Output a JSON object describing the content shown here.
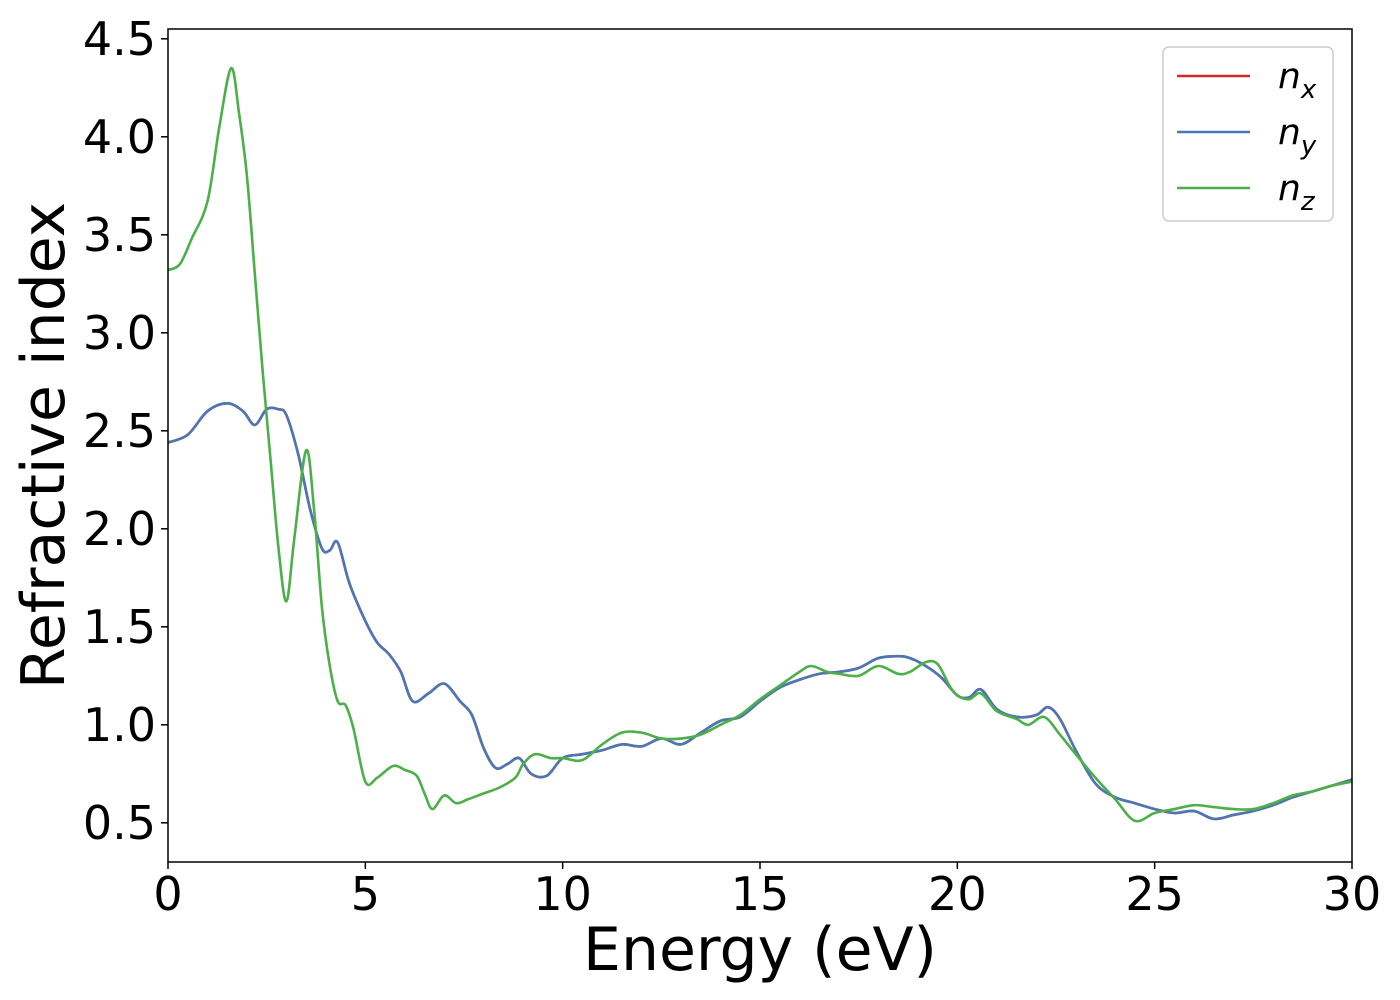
{
  "chart_data": {
    "type": "line",
    "xlabel": "Energy (eV)",
    "ylabel": "Refractive index",
    "xlim": [
      0,
      30
    ],
    "ylim": [
      0.3,
      4.55
    ],
    "x_ticks": [
      "0",
      "5",
      "10",
      "15",
      "20",
      "25",
      "30"
    ],
    "y_ticks": [
      "0.5",
      "1.0",
      "1.5",
      "2.0",
      "2.5",
      "3.0",
      "3.5",
      "4.0",
      "4.5"
    ],
    "grid": false,
    "legend_position": "top-right",
    "series": [
      {
        "name": "n",
        "subscript": "x",
        "color": "#d62728",
        "points": [
          [
            0,
            2.44
          ],
          [
            0.5,
            2.48
          ],
          [
            1.0,
            2.6
          ],
          [
            1.5,
            2.64
          ],
          [
            1.9,
            2.6
          ],
          [
            2.2,
            2.53
          ],
          [
            2.5,
            2.61
          ],
          [
            2.8,
            2.61
          ],
          [
            3.0,
            2.58
          ],
          [
            3.3,
            2.38
          ],
          [
            3.6,
            2.1
          ],
          [
            3.9,
            1.9
          ],
          [
            4.1,
            1.89
          ],
          [
            4.3,
            1.93
          ],
          [
            4.6,
            1.72
          ],
          [
            5.0,
            1.53
          ],
          [
            5.3,
            1.42
          ],
          [
            5.6,
            1.36
          ],
          [
            5.9,
            1.27
          ],
          [
            6.2,
            1.12
          ],
          [
            6.6,
            1.16
          ],
          [
            7.0,
            1.21
          ],
          [
            7.4,
            1.12
          ],
          [
            7.7,
            1.05
          ],
          [
            8.0,
            0.88
          ],
          [
            8.3,
            0.78
          ],
          [
            8.6,
            0.8
          ],
          [
            8.9,
            0.83
          ],
          [
            9.2,
            0.75
          ],
          [
            9.6,
            0.74
          ],
          [
            10.0,
            0.83
          ],
          [
            10.5,
            0.85
          ],
          [
            11.0,
            0.87
          ],
          [
            11.5,
            0.9
          ],
          [
            12.0,
            0.89
          ],
          [
            12.5,
            0.93
          ],
          [
            13.0,
            0.9
          ],
          [
            13.5,
            0.96
          ],
          [
            14.0,
            1.02
          ],
          [
            14.5,
            1.04
          ],
          [
            15.0,
            1.12
          ],
          [
            15.5,
            1.19
          ],
          [
            16.0,
            1.23
          ],
          [
            16.5,
            1.26
          ],
          [
            17.0,
            1.27
          ],
          [
            17.5,
            1.29
          ],
          [
            18.0,
            1.34
          ],
          [
            18.5,
            1.35
          ],
          [
            18.8,
            1.34
          ],
          [
            19.2,
            1.3
          ],
          [
            19.6,
            1.24
          ],
          [
            20.0,
            1.15
          ],
          [
            20.3,
            1.14
          ],
          [
            20.6,
            1.18
          ],
          [
            21.0,
            1.08
          ],
          [
            21.5,
            1.04
          ],
          [
            22.0,
            1.05
          ],
          [
            22.3,
            1.09
          ],
          [
            22.6,
            1.03
          ],
          [
            23.0,
            0.87
          ],
          [
            23.5,
            0.7
          ],
          [
            24.0,
            0.63
          ],
          [
            24.5,
            0.6
          ],
          [
            25.0,
            0.57
          ],
          [
            25.5,
            0.55
          ],
          [
            26.0,
            0.56
          ],
          [
            26.5,
            0.52
          ],
          [
            27.0,
            0.54
          ],
          [
            27.5,
            0.56
          ],
          [
            28.0,
            0.59
          ],
          [
            28.5,
            0.63
          ],
          [
            29.0,
            0.66
          ],
          [
            29.5,
            0.69
          ],
          [
            30.0,
            0.72
          ]
        ]
      },
      {
        "name": "n",
        "subscript": "y",
        "color": "#4a78b5",
        "points": [
          [
            0,
            2.44
          ],
          [
            0.5,
            2.48
          ],
          [
            1.0,
            2.6
          ],
          [
            1.5,
            2.64
          ],
          [
            1.9,
            2.6
          ],
          [
            2.2,
            2.53
          ],
          [
            2.5,
            2.61
          ],
          [
            2.8,
            2.61
          ],
          [
            3.0,
            2.58
          ],
          [
            3.3,
            2.38
          ],
          [
            3.6,
            2.1
          ],
          [
            3.9,
            1.9
          ],
          [
            4.1,
            1.89
          ],
          [
            4.3,
            1.93
          ],
          [
            4.6,
            1.72
          ],
          [
            5.0,
            1.53
          ],
          [
            5.3,
            1.42
          ],
          [
            5.6,
            1.36
          ],
          [
            5.9,
            1.27
          ],
          [
            6.2,
            1.12
          ],
          [
            6.6,
            1.16
          ],
          [
            7.0,
            1.21
          ],
          [
            7.4,
            1.12
          ],
          [
            7.7,
            1.05
          ],
          [
            8.0,
            0.88
          ],
          [
            8.3,
            0.78
          ],
          [
            8.6,
            0.8
          ],
          [
            8.9,
            0.83
          ],
          [
            9.2,
            0.75
          ],
          [
            9.6,
            0.74
          ],
          [
            10.0,
            0.83
          ],
          [
            10.5,
            0.85
          ],
          [
            11.0,
            0.87
          ],
          [
            11.5,
            0.9
          ],
          [
            12.0,
            0.89
          ],
          [
            12.5,
            0.93
          ],
          [
            13.0,
            0.9
          ],
          [
            13.5,
            0.96
          ],
          [
            14.0,
            1.02
          ],
          [
            14.5,
            1.04
          ],
          [
            15.0,
            1.12
          ],
          [
            15.5,
            1.19
          ],
          [
            16.0,
            1.23
          ],
          [
            16.5,
            1.26
          ],
          [
            17.0,
            1.27
          ],
          [
            17.5,
            1.29
          ],
          [
            18.0,
            1.34
          ],
          [
            18.5,
            1.35
          ],
          [
            18.8,
            1.34
          ],
          [
            19.2,
            1.3
          ],
          [
            19.6,
            1.24
          ],
          [
            20.0,
            1.15
          ],
          [
            20.3,
            1.14
          ],
          [
            20.6,
            1.18
          ],
          [
            21.0,
            1.08
          ],
          [
            21.5,
            1.04
          ],
          [
            22.0,
            1.05
          ],
          [
            22.3,
            1.09
          ],
          [
            22.6,
            1.03
          ],
          [
            23.0,
            0.87
          ],
          [
            23.5,
            0.7
          ],
          [
            24.0,
            0.63
          ],
          [
            24.5,
            0.6
          ],
          [
            25.0,
            0.57
          ],
          [
            25.5,
            0.55
          ],
          [
            26.0,
            0.56
          ],
          [
            26.5,
            0.52
          ],
          [
            27.0,
            0.54
          ],
          [
            27.5,
            0.56
          ],
          [
            28.0,
            0.59
          ],
          [
            28.5,
            0.63
          ],
          [
            29.0,
            0.66
          ],
          [
            29.5,
            0.69
          ],
          [
            30.0,
            0.72
          ]
        ]
      },
      {
        "name": "n",
        "subscript": "z",
        "color": "#4daf4a",
        "points": [
          [
            0,
            3.32
          ],
          [
            0.3,
            3.35
          ],
          [
            0.6,
            3.48
          ],
          [
            1.0,
            3.67
          ],
          [
            1.3,
            4.05
          ],
          [
            1.6,
            4.35
          ],
          [
            1.8,
            4.12
          ],
          [
            2.0,
            3.8
          ],
          [
            2.2,
            3.3
          ],
          [
            2.4,
            2.8
          ],
          [
            2.6,
            2.35
          ],
          [
            2.8,
            1.9
          ],
          [
            3.0,
            1.63
          ],
          [
            3.2,
            1.95
          ],
          [
            3.5,
            2.4
          ],
          [
            3.7,
            2.1
          ],
          [
            3.9,
            1.6
          ],
          [
            4.1,
            1.3
          ],
          [
            4.3,
            1.12
          ],
          [
            4.5,
            1.1
          ],
          [
            4.7,
            0.98
          ],
          [
            5.0,
            0.71
          ],
          [
            5.3,
            0.73
          ],
          [
            5.7,
            0.79
          ],
          [
            6.0,
            0.77
          ],
          [
            6.3,
            0.74
          ],
          [
            6.5,
            0.65
          ],
          [
            6.7,
            0.57
          ],
          [
            7.0,
            0.64
          ],
          [
            7.3,
            0.6
          ],
          [
            7.6,
            0.62
          ],
          [
            8.0,
            0.65
          ],
          [
            8.4,
            0.68
          ],
          [
            8.8,
            0.73
          ],
          [
            9.0,
            0.8
          ],
          [
            9.3,
            0.85
          ],
          [
            9.7,
            0.83
          ],
          [
            10.0,
            0.83
          ],
          [
            10.5,
            0.82
          ],
          [
            11.0,
            0.9
          ],
          [
            11.5,
            0.96
          ],
          [
            12.0,
            0.96
          ],
          [
            12.5,
            0.93
          ],
          [
            13.0,
            0.93
          ],
          [
            13.5,
            0.95
          ],
          [
            14.0,
            1.0
          ],
          [
            14.5,
            1.05
          ],
          [
            15.0,
            1.13
          ],
          [
            15.5,
            1.2
          ],
          [
            16.0,
            1.27
          ],
          [
            16.3,
            1.3
          ],
          [
            16.7,
            1.27
          ],
          [
            17.0,
            1.26
          ],
          [
            17.5,
            1.25
          ],
          [
            18.0,
            1.3
          ],
          [
            18.5,
            1.26
          ],
          [
            18.8,
            1.27
          ],
          [
            19.2,
            1.32
          ],
          [
            19.5,
            1.31
          ],
          [
            19.8,
            1.2
          ],
          [
            20.0,
            1.15
          ],
          [
            20.3,
            1.13
          ],
          [
            20.6,
            1.16
          ],
          [
            21.0,
            1.07
          ],
          [
            21.5,
            1.03
          ],
          [
            21.8,
            1.0
          ],
          [
            22.2,
            1.04
          ],
          [
            22.6,
            0.95
          ],
          [
            23.0,
            0.85
          ],
          [
            23.5,
            0.73
          ],
          [
            24.0,
            0.62
          ],
          [
            24.5,
            0.51
          ],
          [
            25.0,
            0.55
          ],
          [
            25.5,
            0.57
          ],
          [
            26.0,
            0.59
          ],
          [
            26.5,
            0.58
          ],
          [
            27.0,
            0.57
          ],
          [
            27.5,
            0.57
          ],
          [
            28.0,
            0.6
          ],
          [
            28.5,
            0.64
          ],
          [
            29.0,
            0.66
          ],
          [
            29.5,
            0.69
          ],
          [
            30.0,
            0.71
          ]
        ]
      }
    ]
  }
}
